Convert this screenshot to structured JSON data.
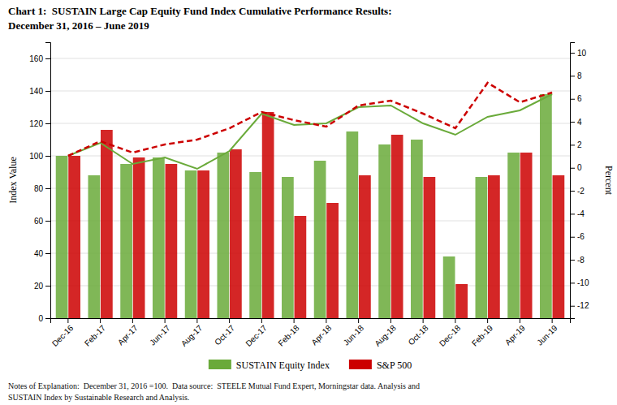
{
  "chart_data": {
    "type": "bar",
    "title": "Chart 1:  SUSTAIN Large Cap Equity Fund Index Cumulative Performance Results:",
    "subtitle": "December 31, 2016 – June 2019",
    "annotations": [
      "Notes of Explanation:  December 31, 2016 =100.  Data source:  STEELE Mutual Fund Expert, Morningstar data. Analysis and\nSUSTAIN Index by Sustainable Research and Analysis."
    ],
    "ylabel": "Index Value",
    "y2label": "Percent",
    "categories": [
      "Dec-16",
      "Feb-17",
      "Apr-17",
      "Jun-17",
      "Aug-17",
      "Oct-17",
      "Dec-17",
      "Feb-18",
      "Apr-18",
      "Jun-18",
      "Aug-18",
      "Oct-18",
      "Dec-18",
      "Feb-19",
      "Apr-19",
      "Jun-19"
    ],
    "series": [
      {
        "name": "SUSTAIN Equity Index",
        "type": "bar",
        "color": "#6aaa3a",
        "values": [
          100,
          88,
          95,
          99,
          91,
          102,
          90,
          87,
          97,
          115,
          107,
          110,
          38,
          87,
          102,
          138
        ]
      },
      {
        "name": "S&P 500",
        "type": "bar",
        "color": "#cc0000",
        "values": [
          100,
          116,
          99,
          95,
          91,
          104,
          127,
          63,
          71,
          88,
          113,
          87,
          21,
          88,
          102,
          88
        ]
      },
      {
        "type": "line",
        "color": "#6aaa3a",
        "line_style": "solid",
        "values": [
          100,
          108,
          95,
          99,
          92,
          103,
          126,
          119,
          120,
          130,
          131,
          120,
          113,
          124,
          128,
          138
        ]
      },
      {
        "type": "line",
        "color": "#cc0000",
        "line_style": "dashed",
        "values": [
          100,
          109,
          102,
          107,
          110,
          117,
          127,
          122,
          118,
          131,
          134,
          126,
          117,
          145,
          133,
          139
        ]
      }
    ],
    "ylim": [
      0,
      170
    ],
    "yticks": [
      0,
      20,
      40,
      60,
      80,
      100,
      120,
      140,
      160
    ],
    "y2lim": [
      -13.077,
      10.923
    ],
    "y2ticks": [
      -12,
      -10,
      -8,
      -6,
      -4,
      -2,
      0,
      2,
      4,
      6,
      8,
      10
    ],
    "grid": true,
    "legend": "bottom"
  }
}
